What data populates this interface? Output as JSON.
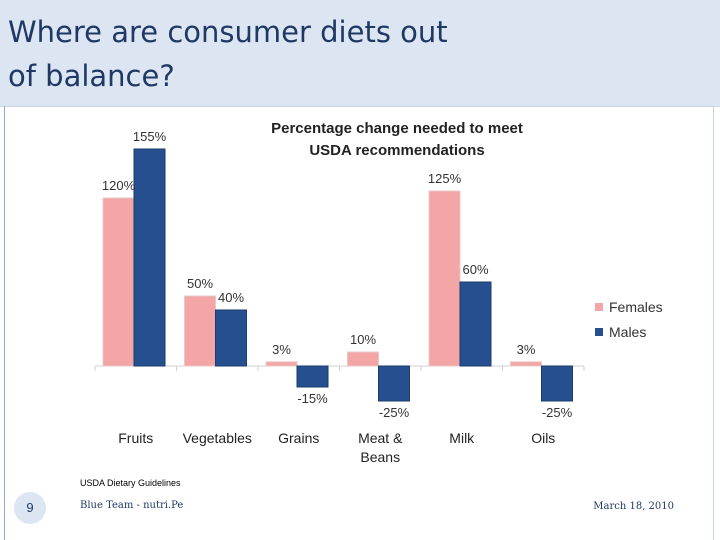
{
  "slide": {
    "title": "Where are consumer diets out of balance?",
    "source": "USDA Dietary Guidelines",
    "slide_number": "9",
    "footer_team": "Blue Team - nutri.Pe",
    "footer_date": "March 18, 2010"
  },
  "colors": {
    "females": "#f4a5a5",
    "males": "#254f8e",
    "accent": "#1f3864",
    "band": "#dce6f2"
  },
  "chart_data": {
    "type": "bar",
    "title": "Percentage change needed to meet USDA recommendations",
    "categories": [
      "Fruits",
      "Vegetables",
      "Grains",
      "Meat & Beans",
      "Milk",
      "Oils"
    ],
    "series": [
      {
        "name": "Females",
        "values": [
          120,
          50,
          3,
          10,
          125,
          3
        ],
        "labels": [
          "120%",
          "50%",
          "3%",
          "10%",
          "125%",
          "3%"
        ]
      },
      {
        "name": "Males",
        "values": [
          155,
          40,
          -15,
          -25,
          60,
          -25
        ],
        "labels": [
          "155%",
          "40%",
          "-15%",
          "-25%",
          "60%",
          "-25%"
        ]
      }
    ],
    "legend": "right",
    "grid": false,
    "ylim": [
      -25,
      155
    ]
  }
}
